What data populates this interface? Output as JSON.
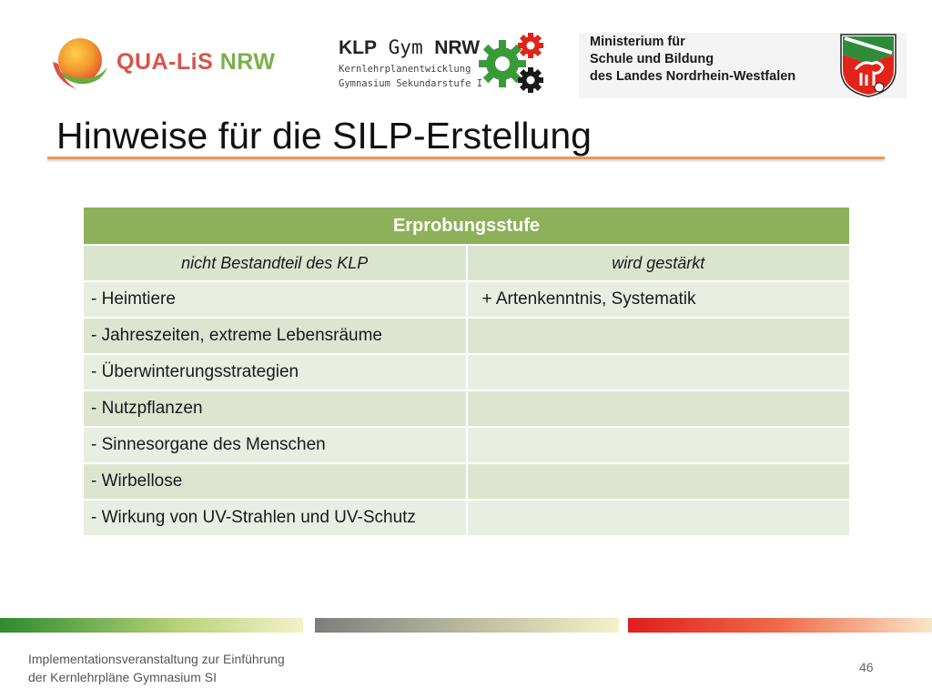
{
  "header": {
    "qualis_logo": {
      "part1": "QUA-LiS",
      "part2": "NRW"
    },
    "klp_logo": {
      "title_klp": "KLP",
      "title_gym": "Gym",
      "title_nrw": "NRW",
      "subtitle_line1": "Kernlehrplanentwicklung",
      "subtitle_line2": "Gymnasium Sekundarstufe I"
    },
    "ministry_logo": {
      "line1": "Ministerium für",
      "line2": "Schule und Bildung",
      "line3": "des Landes Nordrhein-Westfalen"
    }
  },
  "title": "Hinweise für die SILP-Erstellung",
  "table": {
    "header": "Erprobungsstufe",
    "columns": [
      "nicht Bestandteil des KLP",
      "wird gestärkt"
    ],
    "rows": [
      [
        "- Heimtiere",
        "+ Artenkenntnis, Systematik"
      ],
      [
        "- Jahreszeiten, extreme Lebensräume",
        ""
      ],
      [
        "- Überwinterungsstrategien",
        ""
      ],
      [
        "- Nutzpflanzen",
        ""
      ],
      [
        "- Sinnesorgane des Menschen",
        ""
      ],
      [
        "- Wirbellose",
        ""
      ],
      [
        "- Wirkung von UV-Strahlen und UV-Schutz",
        ""
      ]
    ]
  },
  "footer": {
    "line1": "Implementationsveranstaltung zur Einführung",
    "line2": "der Kernlehrpläne Gymnasium SI",
    "page_number": "46"
  },
  "colors": {
    "table_header": "#8db15a",
    "title_rule": "#e89a5a",
    "qualis_red": "#d9534a",
    "qualis_green": "#7ab04a",
    "gear_green": "#3a9a3a",
    "gear_red": "#e2231a"
  }
}
